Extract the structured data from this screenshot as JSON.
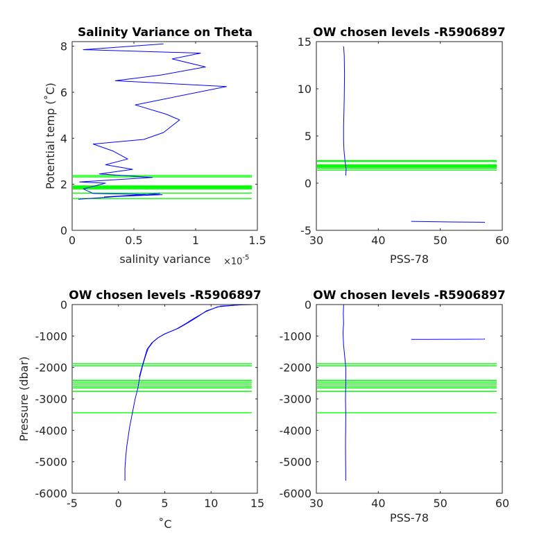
{
  "colors": {
    "data_line": "#0000ff",
    "level_line": "#00ff00",
    "axes": "#262626"
  },
  "chart_data": [
    {
      "type": "line",
      "title": "Salinity Variance on Theta",
      "xlabel": "salinity variance",
      "x_exponent_label": "×10",
      "x_exponent_power": "-5",
      "ylabel": "Potential temp (˚C)",
      "xlim": [
        0,
        1.5
      ],
      "ylim": [
        0,
        8.2
      ],
      "xticks": [
        "0",
        "0.5",
        "1",
        "1.5"
      ],
      "yticks": [
        "0",
        "2",
        "4",
        "6",
        "8"
      ],
      "series": [
        {
          "x": [
            0.74,
            0.09,
            1.04,
            0.81,
            1.08,
            0.72,
            0.35,
            1.25,
            0.51,
            0.76,
            0.87,
            0.74,
            0.58,
            0.17,
            0.33,
            0.45,
            0.27,
            0.49,
            0.22,
            0.65,
            0.06,
            0.27,
            0.09,
            0.17,
            0.73,
            0.26,
            0.71,
            0.05
          ],
          "y": [
            8.1,
            7.85,
            7.7,
            7.45,
            7.1,
            6.75,
            6.5,
            6.25,
            5.45,
            5.05,
            4.8,
            4.25,
            3.95,
            3.75,
            3.45,
            3.1,
            2.85,
            2.65,
            2.45,
            2.3,
            2.1,
            2.05,
            1.8,
            1.6,
            1.55,
            1.45,
            1.6,
            1.35
          ]
        }
      ],
      "levels": [
        2.38,
        2.32,
        1.93,
        1.9,
        1.87,
        1.84,
        1.8,
        1.62,
        1.38
      ]
    },
    {
      "type": "line",
      "title": "OW chosen levels -R5906897",
      "xlabel": "PSS-78",
      "ylabel": "",
      "xlim": [
        30,
        60
      ],
      "ylim": [
        -5,
        15
      ],
      "xticks": [
        "30",
        "40",
        "50",
        "60"
      ],
      "yticks": [
        "-5",
        "0",
        "5",
        "10",
        "15"
      ],
      "series": [
        {
          "x": [
            34.4,
            34.5,
            34.55,
            34.5,
            34.4,
            34.4,
            34.45,
            34.6,
            34.8,
            34.75
          ],
          "y": [
            14.5,
            13.5,
            11.5,
            9,
            6,
            4.5,
            3.5,
            2.5,
            1.5,
            0.8
          ]
        },
        {
          "x": [
            45.3,
            48,
            52,
            57.2
          ],
          "y": [
            -4.05,
            -4.08,
            -4.12,
            -4.15
          ]
        }
      ],
      "levels": [
        2.38,
        2.3,
        1.93,
        1.88,
        1.83,
        1.78,
        1.72,
        1.6,
        1.38
      ]
    },
    {
      "type": "line",
      "title": "OW chosen levels -R5906897",
      "xlabel": "˚C",
      "ylabel": "Pressure (dbar)",
      "xlim": [
        -5,
        15
      ],
      "ylim": [
        -6000,
        0
      ],
      "xticks": [
        "-5",
        "0",
        "5",
        "10",
        "15"
      ],
      "yticks": [
        "-6000",
        "-5000",
        "-4000",
        "-3000",
        "-2000",
        "-1000",
        "0"
      ],
      "series": [
        {
          "x": [
            14.5,
            13.5,
            11,
            9.5,
            8.5,
            7.5,
            6.5,
            5,
            4.3,
            3.7,
            3.2,
            2.9,
            2.6,
            2.3,
            2.1,
            1.8,
            1.5,
            1.2,
            1.05,
            0.9,
            0.8,
            0.7,
            0.7
          ],
          "y": [
            0,
            -5,
            -50,
            -200,
            -400,
            -580,
            -750,
            -930,
            -1050,
            -1200,
            -1400,
            -1650,
            -1950,
            -2300,
            -2650,
            -3000,
            -3450,
            -3900,
            -4200,
            -4500,
            -4800,
            -5200,
            -5600
          ]
        },
        {
          "x": [
            14.6,
            13.0,
            10.7,
            9.4,
            8.2,
            7.3,
            6.3,
            4.9,
            4.2,
            3.6,
            3.1,
            2.85,
            2.55,
            2.25
          ],
          "y": [
            0,
            -10,
            -70,
            -230,
            -430,
            -600,
            -770,
            -950,
            -1070,
            -1220,
            -1420,
            -1670,
            -1970,
            -2300
          ]
        }
      ],
      "levels": [
        -1880,
        -1950,
        -2410,
        -2470,
        -2530,
        -2590,
        -2650,
        -2760,
        -3440
      ]
    },
    {
      "type": "line",
      "title": "OW chosen levels -R5906897",
      "xlabel": "PSS-78",
      "ylabel": "",
      "xlim": [
        30,
        60
      ],
      "ylim": [
        -6000,
        0
      ],
      "xticks": [
        "30",
        "40",
        "50",
        "60"
      ],
      "yticks": [
        "-6000",
        "-5000",
        "-4000",
        "-3000",
        "-2000",
        "-1000",
        "0"
      ],
      "series": [
        {
          "x": [
            34.4,
            34.35,
            34.4,
            34.3,
            34.4,
            34.6,
            34.75,
            34.75,
            34.7,
            34.75,
            34.7,
            34.75
          ],
          "y": [
            0,
            -300,
            -600,
            -900,
            -1300,
            -1700,
            -2000,
            -2500,
            -3000,
            -3500,
            -4500,
            -5600
          ]
        },
        {
          "x": [
            45.3,
            48,
            52,
            57.0,
            57.2
          ],
          "y": [
            -1110,
            -1108,
            -1105,
            -1100,
            -1095
          ]
        }
      ],
      "levels": [
        -1880,
        -1950,
        -2410,
        -2470,
        -2530,
        -2590,
        -2650,
        -2760,
        -3440
      ]
    }
  ]
}
